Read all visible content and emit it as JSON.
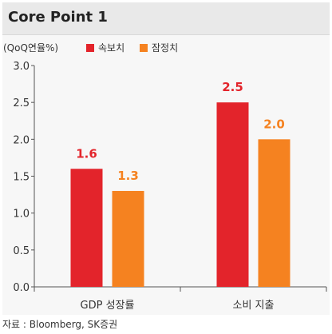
{
  "header": {
    "title": "Core Point 1"
  },
  "legend": {
    "unit": "(QoQ연율%)",
    "items": [
      {
        "label": "속보치",
        "color": "#e3242b"
      },
      {
        "label": "잠정치",
        "color": "#f58220"
      }
    ]
  },
  "footer": {
    "source": "자료 : Bloomberg, SK증권"
  },
  "chart_data": {
    "type": "bar",
    "categories": [
      "GDP 성장률",
      "소비 지출"
    ],
    "series": [
      {
        "name": "속보치",
        "values": [
          1.6,
          2.5
        ],
        "color": "#e3242b"
      },
      {
        "name": "잠정치",
        "values": [
          1.3,
          2.0
        ],
        "color": "#f58220"
      }
    ],
    "title": "Core Point 1",
    "ylabel": "(QoQ연율%)",
    "ylim": [
      0,
      3.0
    ],
    "yticks": [
      "0.0",
      "0.5",
      "1.0",
      "1.5",
      "2.0",
      "2.5",
      "3.0"
    ],
    "data_labels": [
      [
        "1.6",
        "2.5"
      ],
      [
        "1.3",
        "2.0"
      ]
    ],
    "grid": false,
    "legend_position": "top-left"
  }
}
